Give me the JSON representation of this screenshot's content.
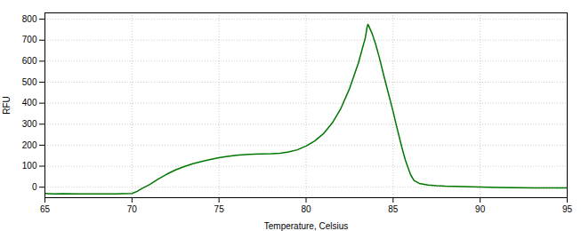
{
  "chart_data": {
    "type": "line",
    "xlabel": "Temperature, Celsius",
    "ylabel": "RFU",
    "x": [
      65.0,
      65.5,
      66.0,
      67.0,
      68.0,
      69.0,
      70.0,
      70.3,
      70.6,
      71.0,
      71.5,
      72.0,
      72.5,
      73.0,
      73.5,
      74.0,
      74.5,
      75.0,
      75.5,
      76.0,
      76.5,
      77.0,
      77.5,
      78.0,
      78.5,
      79.0,
      79.5,
      80.0,
      80.5,
      81.0,
      81.5,
      82.0,
      82.5,
      83.0,
      83.2,
      83.4,
      83.5,
      83.55,
      83.6,
      83.8,
      84.0,
      84.2,
      84.5,
      85.0,
      85.2,
      85.5,
      85.7,
      86.0,
      86.2,
      86.5,
      87.0,
      87.5,
      88.0,
      88.5,
      89.0,
      89.5,
      90.0,
      91.0,
      92.0,
      93.0,
      94.0,
      95.0
    ],
    "values": [
      -30,
      -32,
      -31,
      -32,
      -32,
      -32,
      -30,
      -20,
      -5,
      12,
      38,
      62,
      82,
      98,
      112,
      122,
      132,
      140,
      147,
      152,
      155,
      157,
      158,
      159,
      162,
      168,
      178,
      196,
      220,
      255,
      305,
      375,
      470,
      590,
      650,
      710,
      760,
      775,
      768,
      730,
      680,
      620,
      520,
      360,
      290,
      190,
      130,
      60,
      32,
      18,
      10,
      7,
      5,
      4,
      3,
      2,
      1,
      -1,
      -2,
      -3,
      -3,
      -3
    ],
    "color": "#007700",
    "xlim": [
      65,
      95
    ],
    "ylim": [
      -50,
      830
    ],
    "xticks": [
      65,
      70,
      75,
      80,
      85,
      90,
      95
    ],
    "yticks": [
      0,
      100,
      200,
      300,
      400,
      500,
      600,
      700,
      800
    ],
    "grid": true
  }
}
